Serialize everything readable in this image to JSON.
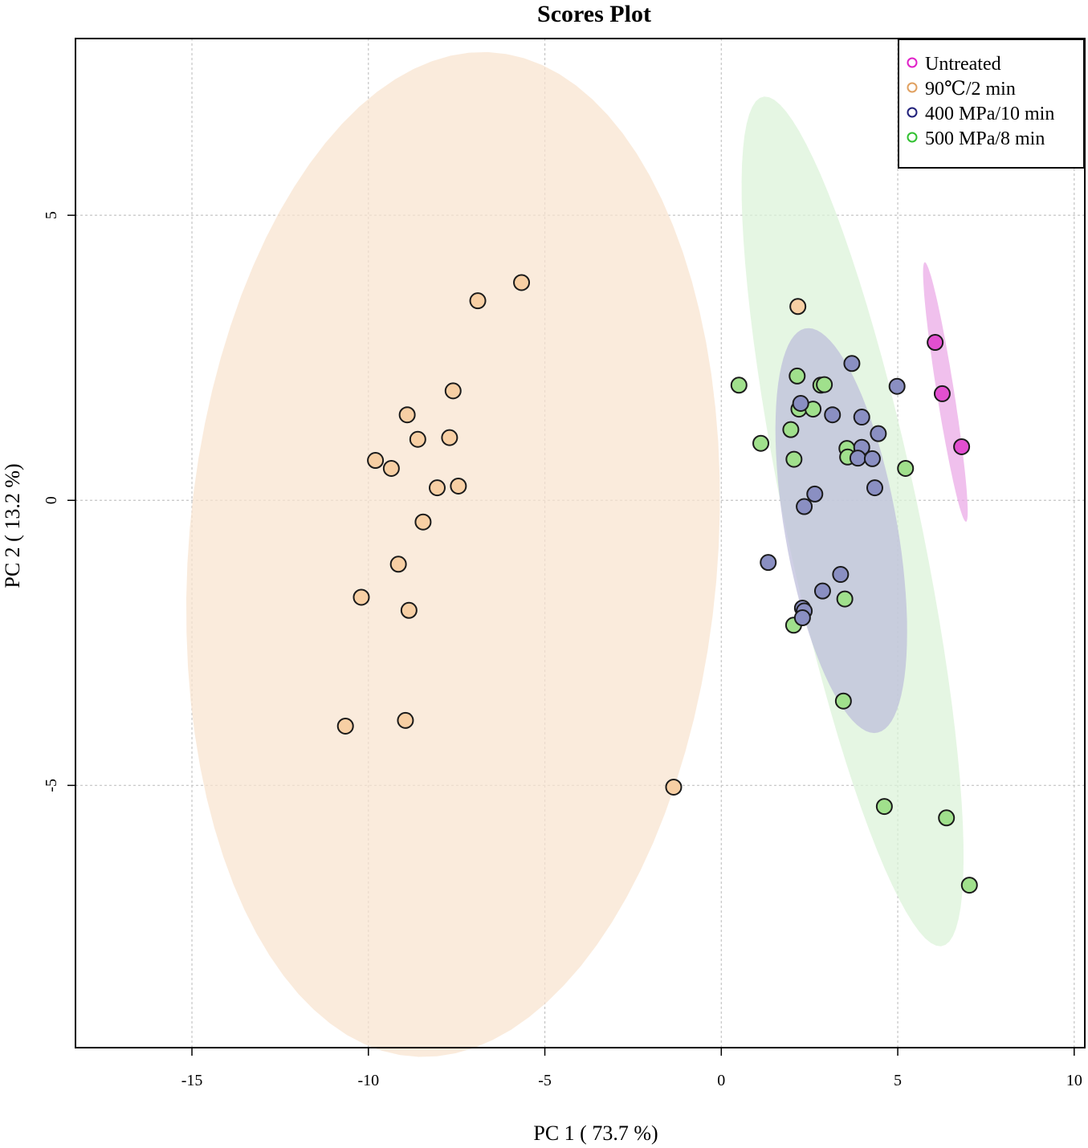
{
  "chart_data": {
    "type": "scatter",
    "title": "Scores Plot",
    "xlabel": "PC 1 ( 73.7 %)",
    "ylabel": "PC 2 ( 13.2 %)",
    "xlim": [
      -18.3,
      10.3
    ],
    "ylim": [
      -9.6,
      8.1
    ],
    "xticks": [
      -15,
      -10,
      -5,
      0,
      5,
      10
    ],
    "yticks": [
      -5,
      0,
      5
    ],
    "xtick_labels": [
      "-15",
      "-10",
      "-5",
      "0",
      "5",
      "10"
    ],
    "ytick_labels": [
      "-5",
      "0",
      "5"
    ],
    "grid": true,
    "legend_position": "top-right",
    "series": [
      {
        "name": "Untreated",
        "color": "#e020c8",
        "fill": "#e24fd0",
        "ellipse_fill": "#eaa8e6",
        "points": [
          [
            6.06,
            2.77
          ],
          [
            6.26,
            1.87
          ],
          [
            6.81,
            0.94
          ]
        ],
        "ellipse": {
          "cx": 6.35,
          "cy": 1.9,
          "rx": 2.35,
          "ry": 0.24,
          "angle_deg": -75.5
        }
      },
      {
        "name": "90℃/2 min",
        "color": "#e0a060",
        "fill": "#f7cfa4",
        "ellipse_fill": "#f8e3cf",
        "points": [
          [
            -5.66,
            3.82
          ],
          [
            -6.9,
            3.5
          ],
          [
            -7.6,
            1.92
          ],
          [
            -8.9,
            1.5
          ],
          [
            -8.6,
            1.07
          ],
          [
            -7.7,
            1.1
          ],
          [
            -9.8,
            0.7
          ],
          [
            -9.35,
            0.56
          ],
          [
            -8.05,
            0.22
          ],
          [
            -7.45,
            0.25
          ],
          [
            -8.45,
            -0.38
          ],
          [
            -9.15,
            -1.12
          ],
          [
            -10.2,
            -1.7
          ],
          [
            -8.85,
            -1.93
          ],
          [
            -10.65,
            -3.96
          ],
          [
            -8.95,
            -3.86
          ],
          [
            -1.35,
            -5.03
          ],
          [
            2.17,
            3.4
          ]
        ],
        "ellipse": {
          "cx": -7.6,
          "cy": -0.95,
          "rx": 7.4,
          "ry": 8.95,
          "angle_deg": -18
        }
      },
      {
        "name": "400 MPa/10 min",
        "color": "#20207a",
        "fill": "#8a8fc2",
        "ellipse_fill": "#bcbddb",
        "points": [
          [
            3.7,
            2.4
          ],
          [
            4.98,
            2.0
          ],
          [
            2.25,
            1.7
          ],
          [
            3.15,
            1.5
          ],
          [
            3.98,
            1.46
          ],
          [
            4.45,
            1.17
          ],
          [
            3.98,
            0.93
          ],
          [
            3.87,
            0.74
          ],
          [
            4.28,
            0.73
          ],
          [
            4.35,
            0.22
          ],
          [
            2.65,
            0.11
          ],
          [
            2.35,
            -0.11
          ],
          [
            1.33,
            -1.09
          ],
          [
            3.38,
            -1.3
          ],
          [
            2.87,
            -1.59
          ],
          [
            2.3,
            -1.89
          ],
          [
            2.35,
            -1.94
          ],
          [
            2.3,
            -2.06
          ]
        ],
        "ellipse": {
          "cx": 3.4,
          "cy": -0.53,
          "rx": 3.7,
          "ry": 1.55,
          "angle_deg": -72
        }
      },
      {
        "name": "500 MPa/8 min",
        "color": "#30c030",
        "fill": "#a0e08c",
        "ellipse_fill": "#dbf3d8",
        "points": [
          [
            0.5,
            2.02
          ],
          [
            2.15,
            2.18
          ],
          [
            2.82,
            2.02
          ],
          [
            2.92,
            2.03
          ],
          [
            2.2,
            1.6
          ],
          [
            2.6,
            1.6
          ],
          [
            1.97,
            1.24
          ],
          [
            1.12,
            1.0
          ],
          [
            3.56,
            0.91
          ],
          [
            3.58,
            0.76
          ],
          [
            2.06,
            0.72
          ],
          [
            5.22,
            0.56
          ],
          [
            3.5,
            -1.73
          ],
          [
            2.05,
            -2.19
          ],
          [
            3.46,
            -3.52
          ],
          [
            4.62,
            -5.37
          ],
          [
            6.38,
            -5.57
          ],
          [
            7.03,
            -6.75
          ]
        ],
        "ellipse": {
          "cx": 3.72,
          "cy": -0.37,
          "rx": 7.88,
          "ry": 1.83,
          "angle_deg": -70.5
        }
      }
    ]
  }
}
